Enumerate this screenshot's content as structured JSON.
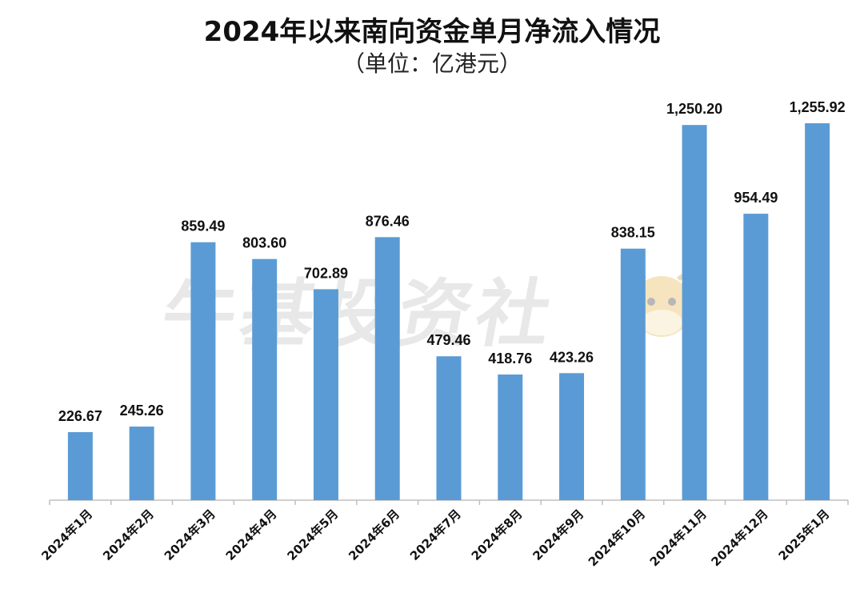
{
  "chart_data": {
    "type": "bar",
    "title": "2024年以来南向资金单月净流入情况",
    "subtitle": "（单位：亿港元）",
    "categories": [
      "2024年1月",
      "2024年2月",
      "2024年3月",
      "2024年4月",
      "2024年5月",
      "2024年6月",
      "2024年7月",
      "2024年8月",
      "2024年9月",
      "2024年10月",
      "2024年11月",
      "2024年12月",
      "2025年1月"
    ],
    "values": [
      226.67,
      245.26,
      859.49,
      803.6,
      702.89,
      876.46,
      479.46,
      418.76,
      423.26,
      838.15,
      1250.2,
      954.49,
      1255.92
    ],
    "value_labels": [
      "226.67",
      "245.26",
      "859.49",
      "803.60",
      "702.89",
      "876.46",
      "479.46",
      "418.76",
      "423.26",
      "838.15",
      "1,250.20",
      "954.49",
      "1,255.92"
    ],
    "ylim": [
      0,
      1400
    ],
    "grid": false,
    "bar_color": "#5B9BD5"
  },
  "watermark": {
    "text": "牛基投资社",
    "icon": "cow-mascot-icon"
  }
}
